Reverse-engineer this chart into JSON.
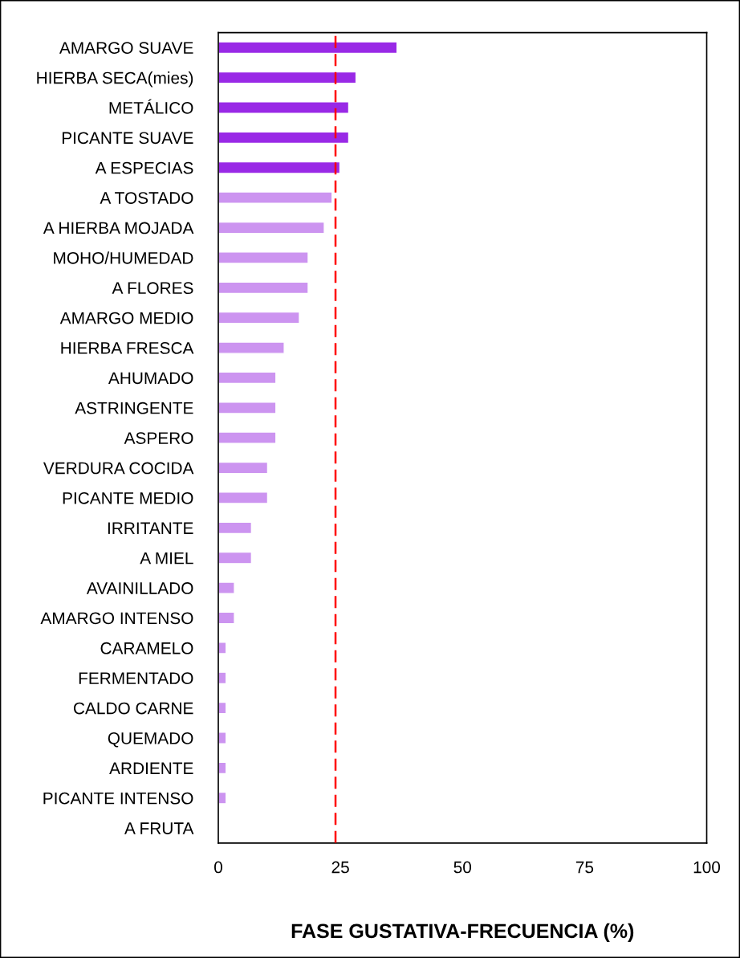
{
  "chart_data": {
    "type": "bar",
    "orientation": "horizontal",
    "xlabel": "FASE GUSTATIVA-FRECUENCIA (%)",
    "categories": [
      "AMARGO SUAVE",
      "HIERBA SECA(mies)",
      "METÁLICO",
      "PICANTE SUAVE",
      "A ESPECIAS",
      "A TOSTADO",
      "A HIERBA MOJADA",
      "MOHO/HUMEDAD",
      "A FLORES",
      "AMARGO MEDIO",
      "HIERBA FRESCA",
      "AHUMADO",
      "ASTRINGENTE",
      "ASPERO",
      "VERDURA COCIDA",
      "PICANTE MEDIO",
      "IRRITANTE",
      "A MIEL",
      "AVAINILLADO",
      "AMARGO INTENSO",
      "CARAMELO",
      "FERMENTADO",
      "CALDO CARNE",
      "QUEMADO",
      "ARDIENTE",
      "PICANTE INTENSO",
      "A FRUTA"
    ],
    "values": [
      36.6,
      28.2,
      26.7,
      26.7,
      24.9,
      23.3,
      21.7,
      18.4,
      18.4,
      16.6,
      13.5,
      11.8,
      11.8,
      11.8,
      10.1,
      10.1,
      6.8,
      6.8,
      3.3,
      3.3,
      1.6,
      1.6,
      1.6,
      1.6,
      1.6,
      1.6,
      0
    ],
    "colors": [
      "#9929e6",
      "#9929e6",
      "#9929e6",
      "#9929e6",
      "#9929e6",
      "#cc94f0",
      "#cc94f0",
      "#cc94f0",
      "#cc94f0",
      "#cc94f0",
      "#cc94f0",
      "#cc94f0",
      "#cc94f0",
      "#cc94f0",
      "#cc94f0",
      "#cc94f0",
      "#cc94f0",
      "#cc94f0",
      "#cc94f0",
      "#cc94f0",
      "#cc94f0",
      "#cc94f0",
      "#cc94f0",
      "#cc94f0",
      "#cc94f0",
      "#cc94f0",
      null
    ],
    "xlim": [
      0,
      100
    ],
    "xticks": [
      0,
      25,
      50,
      75,
      100
    ],
    "grid": false,
    "ref_lines": [
      {
        "axis": "x",
        "value": 24,
        "color": "#ff0000",
        "line_style": "dashed"
      }
    ]
  }
}
